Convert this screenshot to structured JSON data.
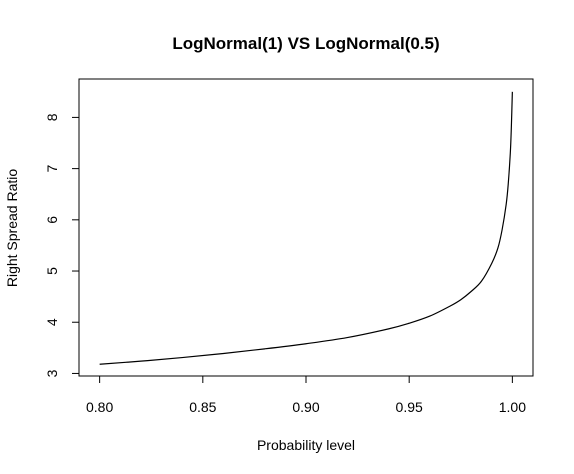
{
  "chart_data": {
    "type": "line",
    "title": "LogNormal(1) VS LogNormal(0.5)",
    "xlabel": "Probability level",
    "ylabel": "Right Spread Ratio",
    "xlim": [
      0.79,
      1.01
    ],
    "ylim": [
      2.95,
      8.75
    ],
    "x_ticks": [
      0.8,
      0.85,
      0.9,
      0.95,
      1.0
    ],
    "x_tick_labels": [
      "0.80",
      "0.85",
      "0.90",
      "0.95",
      "1.00"
    ],
    "y_ticks": [
      3,
      4,
      5,
      6,
      7,
      8
    ],
    "y_tick_labels": [
      "3",
      "4",
      "5",
      "6",
      "7",
      "8"
    ],
    "grid": false,
    "legend": "none",
    "line_color": "#000000",
    "series": [
      {
        "x": [
          0.8,
          0.82,
          0.84,
          0.86,
          0.88,
          0.9,
          0.92,
          0.94,
          0.95,
          0.96,
          0.97,
          0.975,
          0.98,
          0.985,
          0.99,
          0.993,
          0.995,
          0.997,
          0.998,
          0.999,
          0.9995,
          1.0
        ],
        "y": [
          3.18,
          3.24,
          3.31,
          3.39,
          3.48,
          3.58,
          3.7,
          3.87,
          3.98,
          4.12,
          4.32,
          4.44,
          4.6,
          4.8,
          5.15,
          5.45,
          5.8,
          6.3,
          6.7,
          7.3,
          7.8,
          8.5
        ]
      }
    ]
  }
}
